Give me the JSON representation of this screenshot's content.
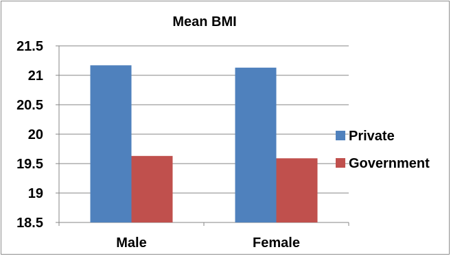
{
  "chart_data": {
    "type": "bar",
    "title": "Mean BMI",
    "xlabel": "",
    "ylabel": "",
    "categories": [
      "Male",
      "Female"
    ],
    "series": [
      {
        "name": "Private",
        "color": "#4f81bd",
        "values": [
          21.17,
          21.13
        ]
      },
      {
        "name": "Government",
        "color": "#c0504d",
        "values": [
          19.63,
          19.59
        ]
      }
    ],
    "ylim": [
      18.5,
      21.5
    ],
    "yticks": [
      "18.5",
      "19",
      "19.5",
      "20",
      "20.5",
      "21",
      "21.5"
    ],
    "grid": true,
    "legend_position": "right"
  }
}
